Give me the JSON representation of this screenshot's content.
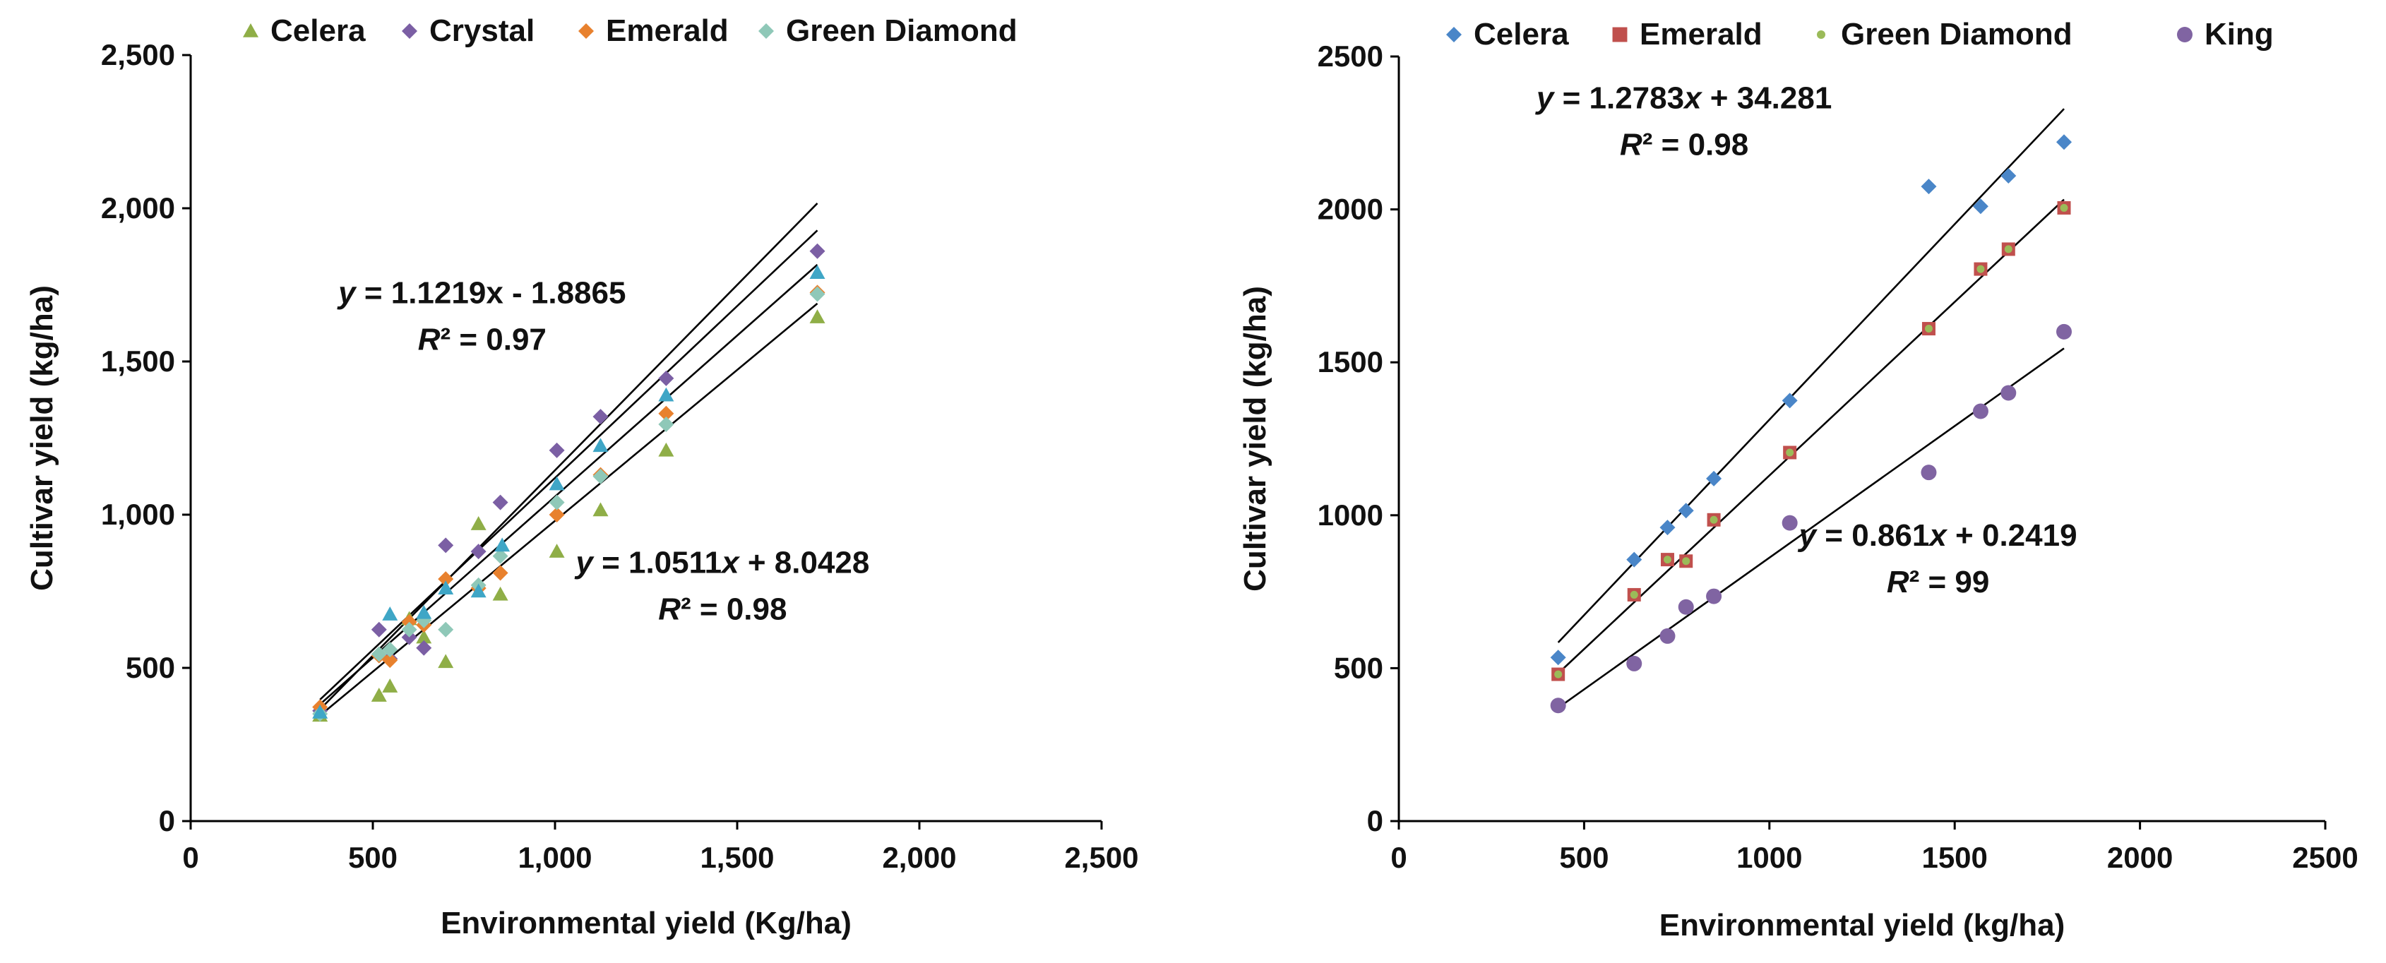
{
  "chart_data": [
    {
      "type": "scatter",
      "title": "",
      "xlabel": "Environmental yield (Kg/ha)",
      "ylabel": "Cultivar yield (kg/ha)",
      "xlim": [
        0,
        2500
      ],
      "ylim": [
        0,
        2500
      ],
      "x_ticks": [
        0,
        500,
        1000,
        1500,
        2000,
        2500
      ],
      "y_ticks": [
        0,
        500,
        1000,
        1500,
        2000,
        2500
      ],
      "x_tick_labels": [
        "0",
        "500",
        "1,000",
        "1,500",
        "2,000",
        "2,500"
      ],
      "y_tick_labels": [
        "0",
        "500",
        "1,000",
        "1,500",
        "2,000",
        "2,500"
      ],
      "grid": false,
      "legend_position": "top",
      "series": [
        {
          "name": "Celera",
          "marker": "triangle",
          "color": "#8FAE47",
          "x": [
            355,
            517,
            547,
            600,
            640,
            700,
            790,
            850,
            1005,
            1125,
            1305,
            1720
          ],
          "y": [
            345,
            410,
            440,
            660,
            600,
            520,
            970,
            740,
            880,
            1015,
            1210,
            1645
          ]
        },
        {
          "name": "Crystal",
          "marker": "diamond",
          "color": "#7B5FA4",
          "x": [
            355,
            517,
            547,
            600,
            640,
            700,
            790,
            850,
            1005,
            1125,
            1305,
            1720
          ],
          "y": [
            360,
            625,
            530,
            600,
            565,
            900,
            880,
            1040,
            1210,
            1320,
            1445,
            1860
          ]
        },
        {
          "name": "Emerald",
          "marker": "diamond",
          "color": "#E8812E",
          "x": [
            355,
            517,
            547,
            600,
            640,
            700,
            790,
            850,
            1005,
            1125,
            1305,
            1720
          ],
          "y": [
            372,
            540,
            525,
            650,
            640,
            790,
            760,
            810,
            1000,
            1130,
            1330,
            1725
          ]
        },
        {
          "name": "Green Diamond",
          "marker": "diamond",
          "color": "#8FC8B8",
          "x": [
            355,
            517,
            547,
            600,
            640,
            700,
            790,
            850,
            1005,
            1125,
            1305,
            1720
          ],
          "y": [
            350,
            545,
            560,
            625,
            655,
            625,
            770,
            865,
            1040,
            1125,
            1295,
            1720
          ]
        },
        {
          "name": "",
          "marker": "triangle",
          "color": "#3FA6C6",
          "in_legend": false,
          "x": [
            355,
            547,
            640,
            700,
            790,
            855,
            1005,
            1125,
            1305,
            1720
          ],
          "y": [
            355,
            675,
            680,
            760,
            750,
            900,
            1100,
            1225,
            1390,
            1790
          ]
        }
      ],
      "trendlines": [
        {
          "slope": 1.1219,
          "intercept": -1.8865,
          "x_range": [
            355,
            1720
          ]
        },
        {
          "slope": 1.0511,
          "intercept": 8.0428,
          "x_range": [
            355,
            1720
          ]
        },
        {
          "slope": 1.21,
          "intercept": -65,
          "x_range": [
            355,
            1720
          ]
        },
        {
          "slope": 0.985,
          "intercept": -5,
          "x_range": [
            355,
            1720
          ]
        }
      ],
      "annotations": [
        {
          "x": 800,
          "y": 1690,
          "lines": [
            [
              {
                "t": "y",
                "i": true
              },
              {
                "t": " = 1.1219x - 1.8865"
              }
            ],
            [
              {
                "t": "R",
                "i": true
              },
              {
                "t": "² = 0.97"
              }
            ]
          ]
        },
        {
          "x": 1460,
          "y": 810,
          "lines": [
            [
              {
                "t": "y",
                "i": true
              },
              {
                "t": " = 1.0511"
              },
              {
                "t": "x",
                "i": true
              },
              {
                "t": " + 8.0428"
              }
            ],
            [
              {
                "t": "R",
                "i": true
              },
              {
                "t": "² = 0.98"
              }
            ]
          ]
        }
      ]
    },
    {
      "type": "scatter",
      "title": "",
      "xlabel": "Environmental yield (kg/ha)",
      "ylabel": "Cultivar yield (kg/ha)",
      "xlim": [
        0,
        2500
      ],
      "ylim": [
        0,
        2500
      ],
      "x_ticks": [
        0,
        500,
        1000,
        1500,
        2000,
        2500
      ],
      "y_ticks": [
        0,
        500,
        1000,
        1500,
        2000,
        2500
      ],
      "x_tick_labels": [
        "0",
        "500",
        "1000",
        "1500",
        "2000",
        "2500"
      ],
      "y_tick_labels": [
        "0",
        "500",
        "1000",
        "1500",
        "2000",
        "2500"
      ],
      "grid": false,
      "legend_position": "top",
      "series": [
        {
          "name": "Celera",
          "marker": "diamond",
          "color": "#4A86C8",
          "x": [
            430,
            635,
            725,
            775,
            850,
            1055,
            1430,
            1570,
            1645,
            1795
          ],
          "y": [
            535,
            855,
            960,
            1015,
            1120,
            1375,
            2075,
            2010,
            2110,
            2220
          ]
        },
        {
          "name": "Emerald",
          "marker": "square",
          "color": "#C0504D",
          "x": [
            430,
            635,
            725,
            775,
            850,
            1055,
            1430,
            1570,
            1645,
            1795
          ],
          "y": [
            480,
            740,
            855,
            850,
            985,
            1205,
            1610,
            1805,
            1870,
            2005
          ]
        },
        {
          "name": "Green Diamond",
          "marker": "dot",
          "color": "#9BBB59",
          "x": [
            430,
            635,
            725,
            775,
            850,
            1055,
            1430,
            1570,
            1645,
            1795
          ],
          "y": [
            480,
            740,
            855,
            850,
            985,
            1205,
            1610,
            1805,
            1870,
            2005
          ]
        },
        {
          "name": "King",
          "marker": "circle",
          "color": "#8064A2",
          "x": [
            430,
            635,
            725,
            775,
            850,
            1055,
            1430,
            1570,
            1645,
            1795
          ],
          "y": [
            378,
            515,
            605,
            700,
            735,
            975,
            1140,
            1340,
            1400,
            1600
          ]
        }
      ],
      "trendlines": [
        {
          "slope": 1.2783,
          "intercept": 34.281,
          "x_range": [
            430,
            1795
          ]
        },
        {
          "slope": 1.135,
          "intercept": -5,
          "x_range": [
            430,
            1795
          ]
        },
        {
          "slope": 0.861,
          "intercept": 0.2419,
          "x_range": [
            430,
            1795
          ]
        }
      ],
      "annotations": [
        {
          "x": 770,
          "y": 2330,
          "lines": [
            [
              {
                "t": "y",
                "i": true
              },
              {
                "t": " = 1.2783"
              },
              {
                "t": "x",
                "i": true
              },
              {
                "t": " + 34.281"
              }
            ],
            [
              {
                "t": "R",
                "i": true
              },
              {
                "t": "² = 0.98"
              }
            ]
          ]
        },
        {
          "x": 1455,
          "y": 900,
          "lines": [
            [
              {
                "t": "y",
                "i": true
              },
              {
                "t": " = 0.861"
              },
              {
                "t": "x",
                "i": true
              },
              {
                "t": " + 0.2419"
              }
            ],
            [
              {
                "t": "R",
                "i": true
              },
              {
                "t": "² = 99"
              }
            ]
          ]
        }
      ]
    }
  ]
}
